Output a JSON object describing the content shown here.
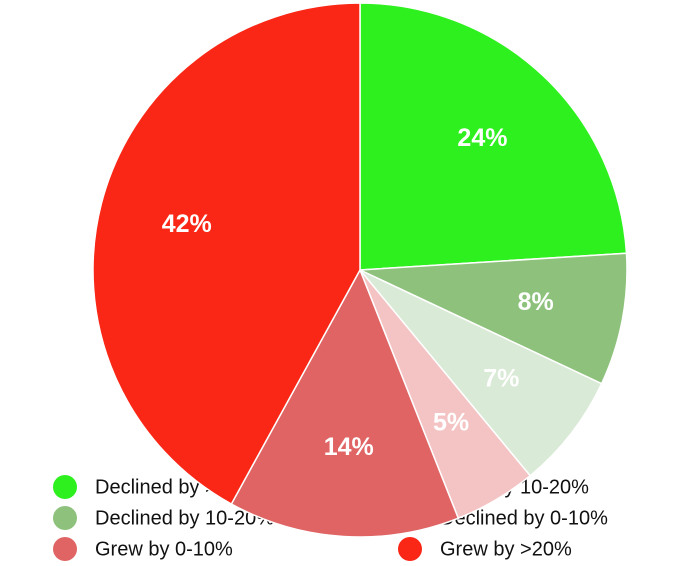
{
  "chart_data": {
    "type": "pie",
    "categories": [
      "Declined by >20%",
      "Declined by 10-20%",
      "Declined by 0-10%",
      "Grew by 10-20%",
      "Grew by 0-10%",
      "Grew by >20%"
    ],
    "values": [
      24,
      8,
      7,
      5,
      14,
      42
    ],
    "value_labels": [
      "24%",
      "8%",
      "7%",
      "5%",
      "14%",
      "42%"
    ],
    "colors": [
      "#2ef01e",
      "#8ec27c",
      "#d9ead6",
      "#f4c4c4",
      "#e06464",
      "#fa2616"
    ],
    "legend": "bottom"
  }
}
